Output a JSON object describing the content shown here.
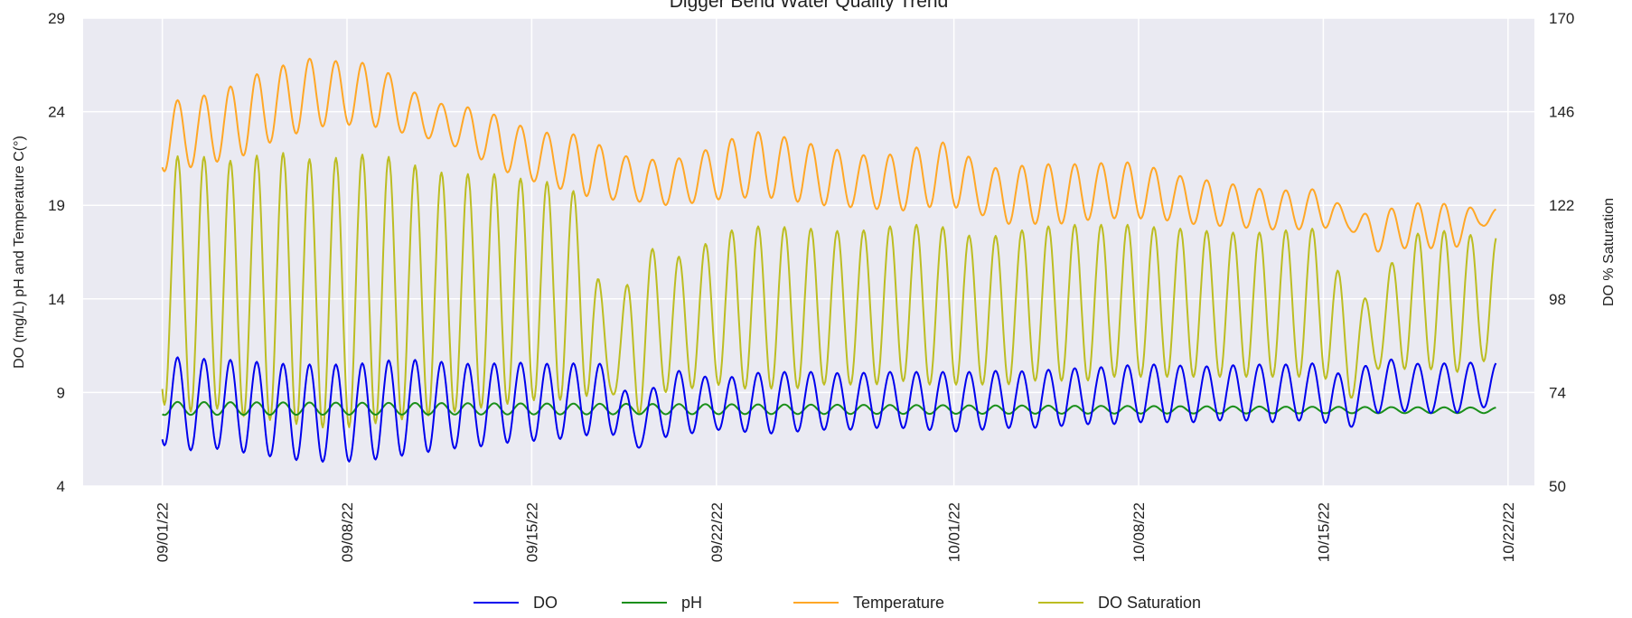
{
  "chart_data": {
    "type": "line",
    "title": "Digger Bend Water Quality Trend",
    "ylabel_left": "DO (mg/L) pH and Temperature C(°)",
    "ylabel_right": "DO % Saturation",
    "xlabel": "",
    "ylim_left": [
      4,
      29
    ],
    "ylim_right": [
      50,
      170
    ],
    "yticks_left": [
      4,
      9,
      14,
      19,
      24,
      29
    ],
    "yticks_right": [
      50,
      74,
      98,
      122,
      146,
      170
    ],
    "xlim": [
      "2022-08-29",
      "2022-10-23"
    ],
    "xticks": [
      {
        "date": "2022-09-01",
        "label": "09/01/22"
      },
      {
        "date": "2022-09-08",
        "label": "09/08/22"
      },
      {
        "date": "2022-09-15",
        "label": "09/15/22"
      },
      {
        "date": "2022-09-22",
        "label": "09/22/22"
      },
      {
        "date": "2022-10-01",
        "label": "10/01/22"
      },
      {
        "date": "2022-10-08",
        "label": "10/08/22"
      },
      {
        "date": "2022-10-15",
        "label": "10/15/22"
      },
      {
        "date": "2022-10-22",
        "label": "10/22/22"
      }
    ],
    "grid": true,
    "legend_position": "bottom-center",
    "colors": {
      "background": "#eaeaf2",
      "grid": "#ffffff",
      "DO": "#0000ee",
      "pH": "#1a8f1a",
      "Temperature": "#ffa726",
      "DO Saturation": "#bcbd22"
    },
    "series": [
      {
        "name": "DO",
        "axis": "left",
        "dates": [
          "2022-09-01",
          "2022-09-02",
          "2022-09-03",
          "2022-09-04",
          "2022-09-05",
          "2022-09-06",
          "2022-09-07",
          "2022-09-08",
          "2022-09-09",
          "2022-09-10",
          "2022-09-11",
          "2022-09-12",
          "2022-09-13",
          "2022-09-14",
          "2022-09-15",
          "2022-09-16",
          "2022-09-17",
          "2022-09-18",
          "2022-09-19",
          "2022-09-20",
          "2022-09-21",
          "2022-09-22",
          "2022-09-23",
          "2022-09-24",
          "2022-09-25",
          "2022-09-26",
          "2022-09-27",
          "2022-09-28",
          "2022-09-29",
          "2022-09-30",
          "2022-10-01",
          "2022-10-02",
          "2022-10-03",
          "2022-10-04",
          "2022-10-05",
          "2022-10-06",
          "2022-10-07",
          "2022-10-08",
          "2022-10-09",
          "2022-10-10",
          "2022-10-11",
          "2022-10-12",
          "2022-10-13",
          "2022-10-14",
          "2022-10-15",
          "2022-10-16",
          "2022-10-17",
          "2022-10-18",
          "2022-10-19",
          "2022-10-20",
          "2022-10-21"
        ],
        "min": [
          6.2,
          5.9,
          6.0,
          5.8,
          5.6,
          5.4,
          5.3,
          5.3,
          5.4,
          5.6,
          5.8,
          6.0,
          6.1,
          6.3,
          6.4,
          6.5,
          6.7,
          6.8,
          6.0,
          6.6,
          6.8,
          7.0,
          6.9,
          6.8,
          6.9,
          7.0,
          7.0,
          7.1,
          7.1,
          7.0,
          6.9,
          7.0,
          7.1,
          7.1,
          7.2,
          7.3,
          7.3,
          7.4,
          7.4,
          7.4,
          7.5,
          7.5,
          7.4,
          7.5,
          7.4,
          7.1,
          7.9,
          8.0,
          7.9,
          7.9,
          8.2
        ],
        "max": [
          11.0,
          10.8,
          10.8,
          10.7,
          10.6,
          10.5,
          10.5,
          10.5,
          10.6,
          10.8,
          10.7,
          10.6,
          10.5,
          10.6,
          10.6,
          10.5,
          10.6,
          10.5,
          8.0,
          10.1,
          10.2,
          9.6,
          10.0,
          10.1,
          10.1,
          10.1,
          10.0,
          10.1,
          10.1,
          10.1,
          10.1,
          10.1,
          10.2,
          10.1,
          10.3,
          10.3,
          10.4,
          10.5,
          10.5,
          10.4,
          10.4,
          10.5,
          10.5,
          10.5,
          10.6,
          9.6,
          11.0,
          10.6,
          10.5,
          10.6,
          10.6
        ]
      },
      {
        "name": "pH",
        "axis": "left",
        "dates": [
          "2022-09-01",
          "2022-10-21"
        ],
        "min": [
          7.8,
          7.9
        ],
        "max": [
          8.5,
          8.2
        ]
      },
      {
        "name": "Temperature",
        "axis": "left",
        "dates": [
          "2022-09-01",
          "2022-09-02",
          "2022-09-03",
          "2022-09-04",
          "2022-09-05",
          "2022-09-06",
          "2022-09-07",
          "2022-09-08",
          "2022-09-09",
          "2022-09-10",
          "2022-09-11",
          "2022-09-12",
          "2022-09-13",
          "2022-09-14",
          "2022-09-15",
          "2022-09-16",
          "2022-09-17",
          "2022-09-18",
          "2022-09-19",
          "2022-09-20",
          "2022-09-21",
          "2022-09-22",
          "2022-09-23",
          "2022-09-24",
          "2022-09-25",
          "2022-09-26",
          "2022-09-27",
          "2022-09-28",
          "2022-09-29",
          "2022-09-30",
          "2022-10-01",
          "2022-10-02",
          "2022-10-03",
          "2022-10-04",
          "2022-10-05",
          "2022-10-06",
          "2022-10-07",
          "2022-10-08",
          "2022-10-09",
          "2022-10-10",
          "2022-10-11",
          "2022-10-12",
          "2022-10-13",
          "2022-10-14",
          "2022-10-15",
          "2022-10-16",
          "2022-10-17",
          "2022-10-18",
          "2022-10-19",
          "2022-10-20",
          "2022-10-21"
        ],
        "min": [
          20.8,
          21.0,
          21.3,
          21.6,
          22.3,
          22.8,
          23.2,
          23.3,
          23.2,
          22.9,
          22.6,
          22.2,
          21.5,
          20.8,
          20.3,
          19.9,
          19.5,
          19.3,
          19.2,
          19.0,
          19.1,
          19.3,
          19.4,
          19.4,
          19.2,
          19.0,
          18.9,
          18.8,
          18.7,
          18.9,
          18.9,
          18.5,
          18.0,
          18.0,
          18.0,
          18.2,
          18.3,
          18.3,
          18.2,
          18.0,
          17.9,
          17.8,
          17.7,
          17.7,
          17.8,
          17.7,
          16.5,
          16.7,
          16.7,
          16.7,
          17.9
        ],
        "max": [
          24.5,
          24.7,
          25.0,
          25.6,
          26.3,
          26.6,
          27.0,
          26.5,
          26.7,
          25.6,
          24.6,
          24.3,
          24.2,
          23.6,
          23.0,
          22.8,
          22.8,
          21.8,
          21.5,
          21.4,
          21.6,
          22.2,
          22.8,
          23.0,
          22.4,
          22.2,
          21.8,
          21.6,
          21.8,
          22.3,
          22.4,
          21.0,
          21.0,
          21.2,
          21.2,
          21.2,
          21.3,
          21.3,
          20.8,
          20.4,
          20.3,
          20.0,
          19.8,
          19.8,
          19.9,
          18.5,
          18.6,
          19.0,
          19.2,
          19.0,
          18.8
        ]
      },
      {
        "name": "DO Saturation",
        "axis": "right",
        "dates": [
          "2022-09-01",
          "2022-09-02",
          "2022-09-03",
          "2022-09-04",
          "2022-09-05",
          "2022-09-06",
          "2022-09-07",
          "2022-09-08",
          "2022-09-09",
          "2022-09-10",
          "2022-09-11",
          "2022-09-12",
          "2022-09-13",
          "2022-09-14",
          "2022-09-15",
          "2022-09-16",
          "2022-09-17",
          "2022-09-18",
          "2022-09-19",
          "2022-09-20",
          "2022-09-21",
          "2022-09-22",
          "2022-09-23",
          "2022-09-24",
          "2022-09-25",
          "2022-09-26",
          "2022-09-27",
          "2022-09-28",
          "2022-09-29",
          "2022-09-30",
          "2022-10-01",
          "2022-10-02",
          "2022-10-03",
          "2022-10-04",
          "2022-10-05",
          "2022-10-06",
          "2022-10-07",
          "2022-10-08",
          "2022-10-09",
          "2022-10-10",
          "2022-10-11",
          "2022-10-12",
          "2022-10-13",
          "2022-10-14",
          "2022-10-15",
          "2022-10-16",
          "2022-10-17",
          "2022-10-18",
          "2022-10-19",
          "2022-10-20",
          "2022-10-21"
        ],
        "min": [
          71,
          69,
          70,
          68,
          67,
          66,
          65,
          65,
          66,
          67,
          68,
          69,
          70,
          71,
          72,
          72,
          73,
          74,
          68,
          74,
          75,
          76,
          75,
          75,
          75,
          76,
          76,
          76,
          77,
          76,
          76,
          76,
          76,
          77,
          77,
          77,
          78,
          78,
          78,
          78,
          78,
          78,
          78,
          78,
          78,
          72,
          80,
          80,
          80,
          79,
          82
        ],
        "max": [
          134,
          135,
          134,
          133,
          136,
          135,
          133,
          135,
          135,
          134,
          131,
          130,
          130,
          130,
          128,
          128,
          124,
          86,
          112,
          110,
          108,
          115,
          116,
          117,
          116,
          116,
          115,
          116,
          117,
          117,
          116,
          113,
          115,
          116,
          117,
          117,
          117,
          117,
          116,
          116,
          115,
          115,
          115,
          116,
          116,
          97,
          99,
          113,
          116,
          115,
          114
        ]
      }
    ]
  },
  "legend": {
    "items": [
      {
        "label": "DO",
        "color": "#0000ee"
      },
      {
        "label": "pH",
        "color": "#1a8f1a"
      },
      {
        "label": "Temperature",
        "color": "#ffa726"
      },
      {
        "label": "DO Saturation",
        "color": "#bcbd22"
      }
    ]
  }
}
